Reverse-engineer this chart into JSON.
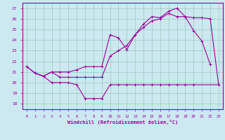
{
  "xlabel": "Windchill (Refroidissement éolien,°C)",
  "background_color": "#cce8f0",
  "grid_color": "#99ccbb",
  "line_color": "#990099",
  "xlim": [
    -0.5,
    23.5
  ],
  "ylim": [
    17.5,
    27.5
  ],
  "xticks": [
    0,
    1,
    2,
    3,
    4,
    5,
    6,
    7,
    8,
    9,
    10,
    11,
    12,
    13,
    14,
    15,
    16,
    17,
    18,
    19,
    20,
    21,
    22,
    23
  ],
  "yticks": [
    18,
    19,
    20,
    21,
    22,
    23,
    24,
    25,
    26,
    27
  ],
  "line1_x": [
    0,
    1,
    2,
    3,
    4,
    5,
    6,
    7,
    8,
    9,
    10,
    11,
    12,
    13,
    14,
    15,
    16,
    17,
    18,
    19,
    20,
    21,
    22
  ],
  "line1_y": [
    21.5,
    20.9,
    20.6,
    21.0,
    21.0,
    21.0,
    21.2,
    21.5,
    21.5,
    21.5,
    24.5,
    24.2,
    23.1,
    24.5,
    25.5,
    26.2,
    26.1,
    26.7,
    27.0,
    26.2,
    24.9,
    23.9,
    21.7
  ],
  "line2_x": [
    0,
    1,
    2,
    3,
    4,
    5,
    6,
    7,
    8,
    9,
    10,
    11,
    12,
    13,
    14,
    15,
    16,
    17,
    18,
    19,
    20,
    21,
    22,
    23
  ],
  "line2_y": [
    21.5,
    20.9,
    20.6,
    21.0,
    20.5,
    20.5,
    20.5,
    20.5,
    20.5,
    20.5,
    22.5,
    23.0,
    23.5,
    24.5,
    25.2,
    25.8,
    26.0,
    26.5,
    26.2,
    26.2,
    26.1,
    26.1,
    26.0,
    19.8
  ],
  "line3_x": [
    1,
    2,
    3,
    4,
    5,
    6,
    7,
    8,
    9,
    10,
    11,
    12,
    13,
    14,
    15,
    16,
    17,
    18,
    19,
    20,
    23
  ],
  "line3_y": [
    20.9,
    20.6,
    20.0,
    20.0,
    20.0,
    19.8,
    18.5,
    18.5,
    18.5,
    19.8,
    19.8,
    19.8,
    19.8,
    19.8,
    19.8,
    19.8,
    19.8,
    19.8,
    19.8,
    19.8,
    19.8
  ]
}
